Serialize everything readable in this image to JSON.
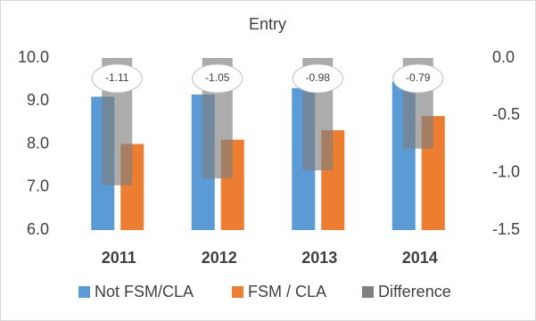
{
  "chart_data": {
    "type": "bar",
    "title": "Entry",
    "categories": [
      "2011",
      "2012",
      "2013",
      "2014"
    ],
    "series": [
      {
        "name": "Not FSM/CLA",
        "color": "#5b9bd5",
        "values": [
          9.1,
          9.15,
          9.3,
          9.45
        ]
      },
      {
        "name": "FSM / CLA",
        "color": "#ed7d31",
        "values": [
          8.0,
          8.1,
          8.32,
          8.65
        ]
      },
      {
        "name": "Difference",
        "color": "#7f7f7f",
        "axis": "y2",
        "values": [
          -1.11,
          -1.05,
          -0.98,
          -0.79
        ]
      }
    ],
    "ylim": [
      6,
      10
    ],
    "yticks": [
      {
        "value": 6,
        "label": "6.0"
      },
      {
        "value": 7,
        "label": "7.0"
      },
      {
        "value": 8,
        "label": "8.0"
      },
      {
        "value": 9,
        "label": "9.0"
      },
      {
        "value": 10,
        "label": "10.0"
      }
    ],
    "y2lim": [
      -1.5,
      0
    ],
    "y2ticks": [
      {
        "value": 0,
        "label": "0.0"
      },
      -0.5,
      {
        "value": -1,
        "label": "-1.0"
      },
      -1.5
    ],
    "legend": "bottom"
  }
}
